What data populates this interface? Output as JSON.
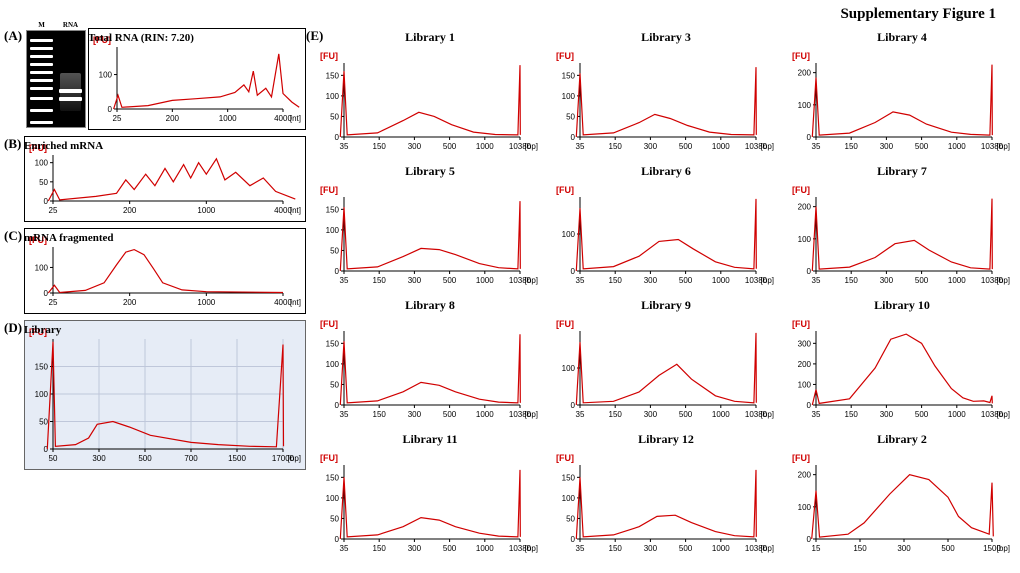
{
  "title": "Supplementary Figure 1",
  "colors": {
    "trace": "#d00000",
    "grid": "#bfc7da",
    "bg": "#ffffff",
    "panelD_bg": "#e6ecf6"
  },
  "left": {
    "A": {
      "label": "(A)",
      "gel": {
        "lanes": [
          "M",
          "RNA"
        ],
        "ladder_positions": [
          8,
          16,
          24,
          32,
          40,
          48,
          56,
          66,
          78,
          90
        ],
        "ladder_kb": [
          "kb",
          "10",
          "8",
          "6",
          "5",
          "4",
          "3",
          "2",
          "1.5",
          "1",
          "0.5"
        ],
        "rna_band_y": [
          58,
          66
        ],
        "rna_smear": [
          42,
          80
        ]
      },
      "trace": {
        "title": "Total RNA (RIN: 7.20)",
        "fu": "[FU]",
        "x_unit": "[nt]",
        "x_ticks": [
          25,
          200,
          1000,
          4000
        ],
        "y_ticks": [
          0,
          100
        ],
        "ymax": 180,
        "series": [
          [
            22,
            0
          ],
          [
            26,
            40
          ],
          [
            30,
            5
          ],
          [
            80,
            10
          ],
          [
            200,
            25
          ],
          [
            400,
            30
          ],
          [
            800,
            35
          ],
          [
            1200,
            48
          ],
          [
            1500,
            70
          ],
          [
            1700,
            50
          ],
          [
            1900,
            110
          ],
          [
            2100,
            40
          ],
          [
            2600,
            60
          ],
          [
            3000,
            35
          ],
          [
            3600,
            160
          ],
          [
            4000,
            45
          ],
          [
            5000,
            20
          ],
          [
            6000,
            5
          ]
        ]
      }
    },
    "B": {
      "label": "(B)",
      "trace": {
        "title": "Enriched mRNA",
        "fu": "[FU]",
        "x_unit": "[nt]",
        "x_ticks": [
          25,
          200,
          1000,
          4000
        ],
        "y_ticks": [
          0,
          50,
          100
        ],
        "ymax": 120,
        "series": [
          [
            22,
            0
          ],
          [
            26,
            30
          ],
          [
            30,
            3
          ],
          [
            80,
            12
          ],
          [
            140,
            20
          ],
          [
            180,
            55
          ],
          [
            220,
            30
          ],
          [
            280,
            70
          ],
          [
            340,
            40
          ],
          [
            420,
            85
          ],
          [
            500,
            50
          ],
          [
            620,
            95
          ],
          [
            720,
            60
          ],
          [
            850,
            100
          ],
          [
            1000,
            70
          ],
          [
            1200,
            110
          ],
          [
            1400,
            55
          ],
          [
            1700,
            75
          ],
          [
            2200,
            40
          ],
          [
            2800,
            60
          ],
          [
            3500,
            25
          ],
          [
            5000,
            5
          ]
        ]
      }
    },
    "C": {
      "label": "(C)",
      "trace": {
        "title": "mRNA fragmented",
        "fu": "[FU]",
        "x_unit": "[nt]",
        "x_ticks": [
          25,
          200,
          1000,
          4000
        ],
        "y_ticks": [
          0,
          100
        ],
        "ymax": 180,
        "series": [
          [
            22,
            0
          ],
          [
            26,
            30
          ],
          [
            30,
            2
          ],
          [
            60,
            10
          ],
          [
            100,
            40
          ],
          [
            140,
            110
          ],
          [
            180,
            160
          ],
          [
            220,
            170
          ],
          [
            270,
            150
          ],
          [
            330,
            95
          ],
          [
            400,
            40
          ],
          [
            600,
            12
          ],
          [
            1000,
            5
          ],
          [
            4000,
            2
          ]
        ]
      }
    },
    "D": {
      "label": "(D)",
      "trace": {
        "title": "Library",
        "fu": "[FU]",
        "x_unit": "[bp]",
        "x_ticks": [
          50,
          300,
          500,
          700,
          1500,
          17000
        ],
        "y_ticks": [
          0,
          50,
          100,
          150
        ],
        "ymax": 200,
        "grid": true,
        "series": [
          [
            40,
            0
          ],
          [
            50,
            195
          ],
          [
            55,
            5
          ],
          [
            120,
            8
          ],
          [
            200,
            20
          ],
          [
            280,
            45
          ],
          [
            350,
            50
          ],
          [
            420,
            40
          ],
          [
            520,
            25
          ],
          [
            700,
            12
          ],
          [
            1100,
            8
          ],
          [
            3000,
            5
          ],
          [
            12000,
            4
          ],
          [
            17000,
            190
          ],
          [
            17500,
            5
          ]
        ]
      }
    }
  },
  "right": {
    "panel_label": "(E)",
    "fu": "[FU]",
    "x_unit": "[bp]",
    "x_ticks": [
      35,
      150,
      300,
      500,
      1000,
      10380
    ],
    "x_ticks_short": [
      15,
      150,
      300,
      500,
      1500
    ],
    "libraries": [
      {
        "name": "Library 1",
        "y_ticks": [
          0,
          50,
          100,
          150
        ],
        "ymax": 180,
        "series": [
          [
            30,
            0
          ],
          [
            35,
            160
          ],
          [
            40,
            5
          ],
          [
            140,
            10
          ],
          [
            240,
            40
          ],
          [
            320,
            60
          ],
          [
            400,
            50
          ],
          [
            520,
            30
          ],
          [
            800,
            12
          ],
          [
            2000,
            6
          ],
          [
            9000,
            5
          ],
          [
            10380,
            175
          ],
          [
            10600,
            5
          ]
        ]
      },
      {
        "name": "Library 3",
        "y_ticks": [
          0,
          50,
          100,
          150
        ],
        "ymax": 180,
        "series": [
          [
            30,
            0
          ],
          [
            35,
            155
          ],
          [
            40,
            5
          ],
          [
            140,
            10
          ],
          [
            240,
            35
          ],
          [
            320,
            55
          ],
          [
            400,
            45
          ],
          [
            520,
            28
          ],
          [
            800,
            12
          ],
          [
            2000,
            6
          ],
          [
            9000,
            5
          ],
          [
            10380,
            170
          ],
          [
            10600,
            5
          ]
        ]
      },
      {
        "name": "Library 4",
        "y_ticks": [
          0,
          100,
          200
        ],
        "ymax": 230,
        "series": [
          [
            30,
            0
          ],
          [
            35,
            185
          ],
          [
            40,
            6
          ],
          [
            140,
            12
          ],
          [
            240,
            45
          ],
          [
            330,
            78
          ],
          [
            420,
            68
          ],
          [
            550,
            40
          ],
          [
            900,
            15
          ],
          [
            2500,
            8
          ],
          [
            9000,
            6
          ],
          [
            10380,
            225
          ],
          [
            10600,
            6
          ]
        ]
      },
      {
        "name": "Library 5",
        "y_ticks": [
          0,
          50,
          100,
          150
        ],
        "ymax": 180,
        "series": [
          [
            30,
            0
          ],
          [
            35,
            155
          ],
          [
            40,
            5
          ],
          [
            140,
            10
          ],
          [
            240,
            35
          ],
          [
            330,
            55
          ],
          [
            430,
            52
          ],
          [
            560,
            40
          ],
          [
            900,
            18
          ],
          [
            2500,
            8
          ],
          [
            9000,
            5
          ],
          [
            10380,
            170
          ],
          [
            10600,
            5
          ]
        ]
      },
      {
        "name": "Library 6",
        "y_ticks": [
          0,
          100
        ],
        "ymax": 200,
        "series": [
          [
            30,
            0
          ],
          [
            35,
            170
          ],
          [
            40,
            6
          ],
          [
            140,
            12
          ],
          [
            240,
            40
          ],
          [
            340,
            80
          ],
          [
            450,
            85
          ],
          [
            580,
            60
          ],
          [
            900,
            25
          ],
          [
            2500,
            10
          ],
          [
            9000,
            6
          ],
          [
            10380,
            195
          ],
          [
            10600,
            6
          ]
        ]
      },
      {
        "name": "Library 7",
        "y_ticks": [
          0,
          100,
          200
        ],
        "ymax": 230,
        "series": [
          [
            30,
            0
          ],
          [
            35,
            200
          ],
          [
            40,
            6
          ],
          [
            140,
            12
          ],
          [
            240,
            42
          ],
          [
            340,
            85
          ],
          [
            450,
            95
          ],
          [
            580,
            65
          ],
          [
            900,
            28
          ],
          [
            2500,
            10
          ],
          [
            9000,
            6
          ],
          [
            10380,
            225
          ],
          [
            10600,
            6
          ]
        ]
      },
      {
        "name": "Library 8",
        "y_ticks": [
          0,
          50,
          100,
          150
        ],
        "ymax": 180,
        "series": [
          [
            30,
            0
          ],
          [
            35,
            155
          ],
          [
            40,
            5
          ],
          [
            140,
            10
          ],
          [
            240,
            32
          ],
          [
            330,
            55
          ],
          [
            430,
            48
          ],
          [
            560,
            32
          ],
          [
            900,
            14
          ],
          [
            2500,
            7
          ],
          [
            9000,
            5
          ],
          [
            10380,
            172
          ],
          [
            10600,
            5
          ]
        ]
      },
      {
        "name": "Library 9",
        "y_ticks": [
          0,
          100
        ],
        "ymax": 200,
        "series": [
          [
            30,
            0
          ],
          [
            35,
            170
          ],
          [
            40,
            6
          ],
          [
            140,
            10
          ],
          [
            240,
            35
          ],
          [
            340,
            80
          ],
          [
            440,
            110
          ],
          [
            560,
            70
          ],
          [
            900,
            25
          ],
          [
            2500,
            10
          ],
          [
            9000,
            6
          ],
          [
            10380,
            195
          ],
          [
            10600,
            6
          ]
        ]
      },
      {
        "name": "Library 10",
        "y_ticks": [
          0,
          100,
          200,
          300
        ],
        "ymax": 360,
        "series": [
          [
            30,
            0
          ],
          [
            35,
            75
          ],
          [
            40,
            8
          ],
          [
            140,
            30
          ],
          [
            240,
            180
          ],
          [
            320,
            320
          ],
          [
            400,
            345
          ],
          [
            500,
            300
          ],
          [
            650,
            190
          ],
          [
            900,
            80
          ],
          [
            1500,
            35
          ],
          [
            3000,
            18
          ],
          [
            6000,
            20
          ],
          [
            9000,
            12
          ],
          [
            10380,
            45
          ],
          [
            10600,
            8
          ]
        ]
      },
      {
        "name": "Library 11",
        "y_ticks": [
          0,
          50,
          100,
          150
        ],
        "ymax": 180,
        "series": [
          [
            30,
            0
          ],
          [
            35,
            150
          ],
          [
            40,
            5
          ],
          [
            140,
            10
          ],
          [
            240,
            30
          ],
          [
            330,
            52
          ],
          [
            430,
            46
          ],
          [
            560,
            30
          ],
          [
            900,
            14
          ],
          [
            2500,
            7
          ],
          [
            9000,
            5
          ],
          [
            10380,
            168
          ],
          [
            10600,
            5
          ]
        ]
      },
      {
        "name": "Library 12",
        "y_ticks": [
          0,
          50,
          100,
          150
        ],
        "ymax": 180,
        "series": [
          [
            30,
            0
          ],
          [
            35,
            150
          ],
          [
            40,
            5
          ],
          [
            140,
            10
          ],
          [
            240,
            30
          ],
          [
            330,
            55
          ],
          [
            430,
            58
          ],
          [
            560,
            40
          ],
          [
            900,
            18
          ],
          [
            2500,
            8
          ],
          [
            9000,
            5
          ],
          [
            10380,
            168
          ],
          [
            10600,
            5
          ]
        ]
      },
      {
        "name": "Library 2",
        "y_ticks": [
          0,
          100,
          200
        ],
        "ymax": 230,
        "short_x": true,
        "series": [
          [
            12,
            0
          ],
          [
            15,
            150
          ],
          [
            18,
            6
          ],
          [
            80,
            15
          ],
          [
            160,
            50
          ],
          [
            240,
            140
          ],
          [
            320,
            200
          ],
          [
            400,
            185
          ],
          [
            500,
            130
          ],
          [
            650,
            70
          ],
          [
            900,
            35
          ],
          [
            1200,
            22
          ],
          [
            1400,
            15
          ],
          [
            1500,
            175
          ],
          [
            1550,
            8
          ]
        ]
      }
    ]
  }
}
